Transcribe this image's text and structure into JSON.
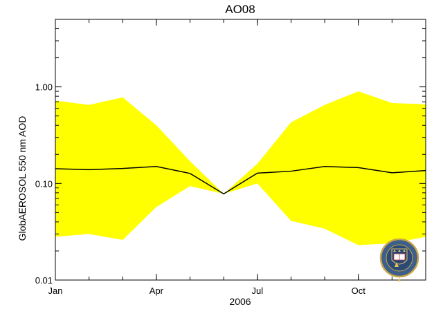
{
  "chart_data": {
    "type": "area",
    "title": "AO08",
    "xlabel": "2006",
    "ylabel": "GlobAEROSOL 550 nm AOD",
    "y_scale": "log",
    "ylim": [
      0.01,
      5
    ],
    "xlim": [
      1,
      12
    ],
    "x_ticks": [
      {
        "value": 1,
        "label": "Jan"
      },
      {
        "value": 4,
        "label": "Apr"
      },
      {
        "value": 7,
        "label": "Jul"
      },
      {
        "value": 10,
        "label": "Oct"
      }
    ],
    "y_ticks": [
      {
        "value": 0.01,
        "label": "0.01"
      },
      {
        "value": 0.1,
        "label": "0.10"
      },
      {
        "value": 1,
        "label": "1.00"
      }
    ],
    "grid": false,
    "x": [
      1,
      2,
      3,
      4,
      5,
      6,
      7,
      8,
      9,
      10,
      11,
      12
    ],
    "series": [
      {
        "type": "band",
        "color": "#ffff00",
        "upper": [
          0.72,
          0.65,
          0.78,
          0.4,
          0.17,
          0.078,
          0.16,
          0.43,
          0.65,
          0.9,
          0.68,
          0.66
        ],
        "lower": [
          0.028,
          0.03,
          0.026,
          0.057,
          0.094,
          0.078,
          0.1,
          0.041,
          0.034,
          0.023,
          0.024,
          0.028
        ]
      },
      {
        "type": "line",
        "color": "#000000",
        "values": [
          0.142,
          0.139,
          0.143,
          0.15,
          0.127,
          0.078,
          0.128,
          0.134,
          0.15,
          0.146,
          0.129,
          0.136
        ]
      }
    ]
  },
  "logo": {
    "icon": "university-crest-icon",
    "text": "UNIVERSITY OF OXFORD"
  }
}
